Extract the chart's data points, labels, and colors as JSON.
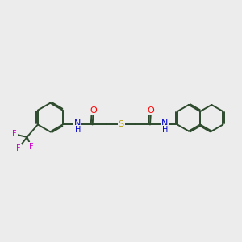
{
  "background_color": "#ececec",
  "bond_color": "#2d4a2d",
  "bond_width": 1.4,
  "O_color": "#ff0000",
  "N_color": "#0000cc",
  "S_color": "#b8a000",
  "F_color": "#cc00cc",
  "figsize": [
    3.0,
    3.0
  ],
  "dpi": 100,
  "xlim": [
    0,
    10
  ],
  "ylim": [
    0,
    10
  ]
}
